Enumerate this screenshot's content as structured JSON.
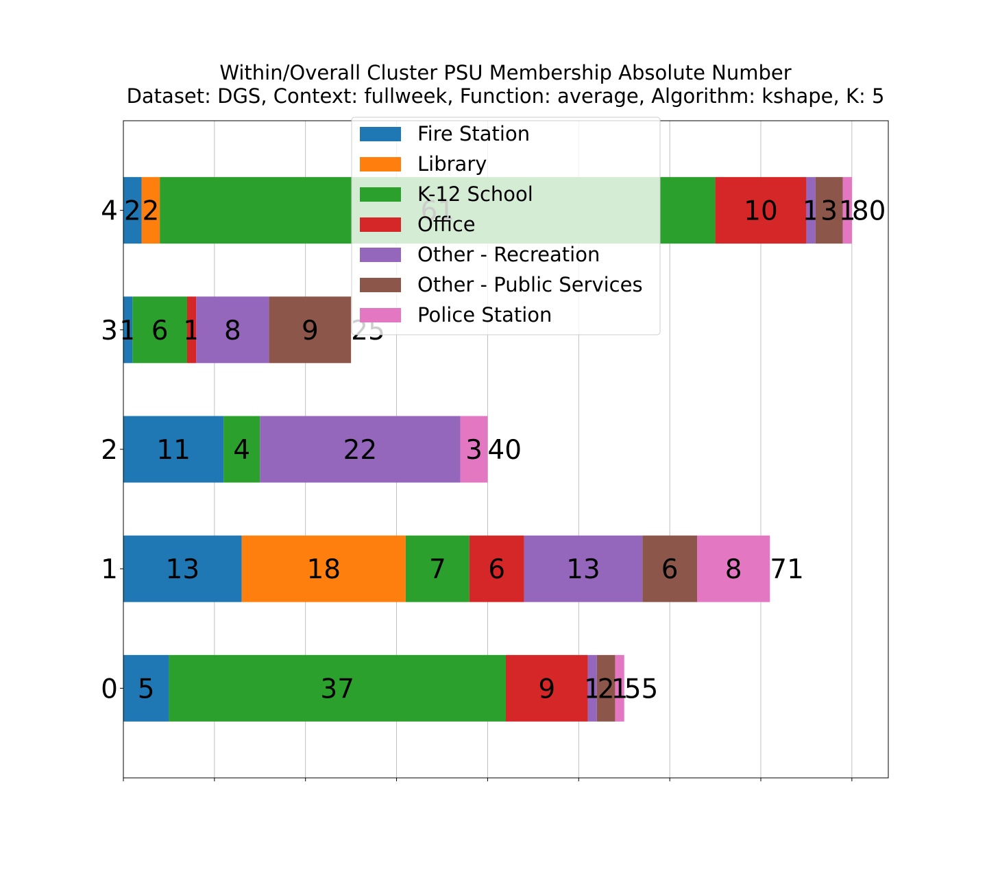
{
  "chart_data": {
    "type": "bar",
    "orientation": "horizontal",
    "stacked": true,
    "title": [
      "Within/Overall Cluster PSU Membership Absolute Number",
      "Dataset: DGS, Context: fullweek, Function: average, Algorithm: kshape, K: 5"
    ],
    "xlabel": "",
    "ylabel": "",
    "categories": [
      "0",
      "1",
      "2",
      "3",
      "4"
    ],
    "xlim": [
      0,
      84
    ],
    "xticks": [
      "0",
      "10",
      "20",
      "30",
      "40",
      "50",
      "60",
      "70",
      "80"
    ],
    "grid": "x",
    "legend_position": "top-center",
    "series": [
      {
        "name": "Fire Station",
        "color": "#1f77b4",
        "values": [
          5,
          13,
          11,
          1,
          2
        ]
      },
      {
        "name": "Library",
        "color": "#ff7f0e",
        "values": [
          0,
          18,
          0,
          0,
          2
        ]
      },
      {
        "name": "K-12 School",
        "color": "#2ca02c",
        "values": [
          37,
          7,
          4,
          6,
          61
        ]
      },
      {
        "name": "Office",
        "color": "#d62728",
        "values": [
          9,
          6,
          0,
          1,
          10
        ]
      },
      {
        "name": "Other - Recreation",
        "color": "#9467bd",
        "values": [
          1,
          13,
          22,
          8,
          1
        ]
      },
      {
        "name": "Other - Public Services",
        "color": "#8c564b",
        "values": [
          2,
          6,
          0,
          9,
          3
        ]
      },
      {
        "name": "Police Station",
        "color": "#e377c2",
        "values": [
          1,
          8,
          3,
          0,
          1
        ]
      }
    ],
    "totals": [
      55,
      71,
      40,
      25,
      80
    ]
  }
}
